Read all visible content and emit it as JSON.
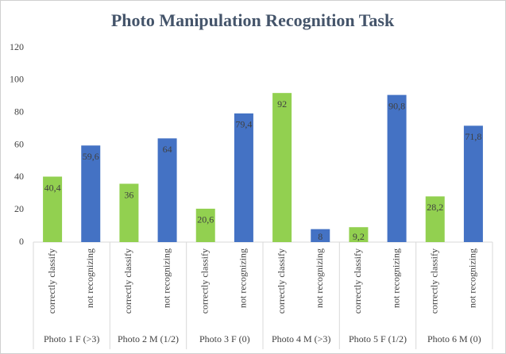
{
  "chart_data": {
    "type": "bar",
    "title": "Photo Manipulation Recognition Task",
    "categories": [
      "Photo 1 F (>3)",
      "Photo 2 M (1/2)",
      "Photo 3 F (0)",
      "Photo 4 M (>3)",
      "Photo 5 F (1/2)",
      "Photo 6 M (0)"
    ],
    "series": [
      {
        "name": "correctly classify",
        "color": "#92d050",
        "values": [
          40.4,
          36,
          20.6,
          92,
          9.2,
          28.2
        ],
        "value_labels": [
          "40,4",
          "36",
          "20,6",
          "92",
          "9,2",
          "28,2"
        ]
      },
      {
        "name": "not recognizing",
        "color": "#4472c4",
        "values": [
          59.6,
          64,
          79.4,
          8,
          90.8,
          71.8
        ],
        "value_labels": [
          "59,6",
          "64",
          "79,4",
          "8",
          "90,8",
          "71,8"
        ]
      }
    ],
    "ylim": [
      0,
      120
    ],
    "yticks": [
      0,
      20,
      40,
      60,
      80,
      100,
      120
    ],
    "grid": false
  }
}
